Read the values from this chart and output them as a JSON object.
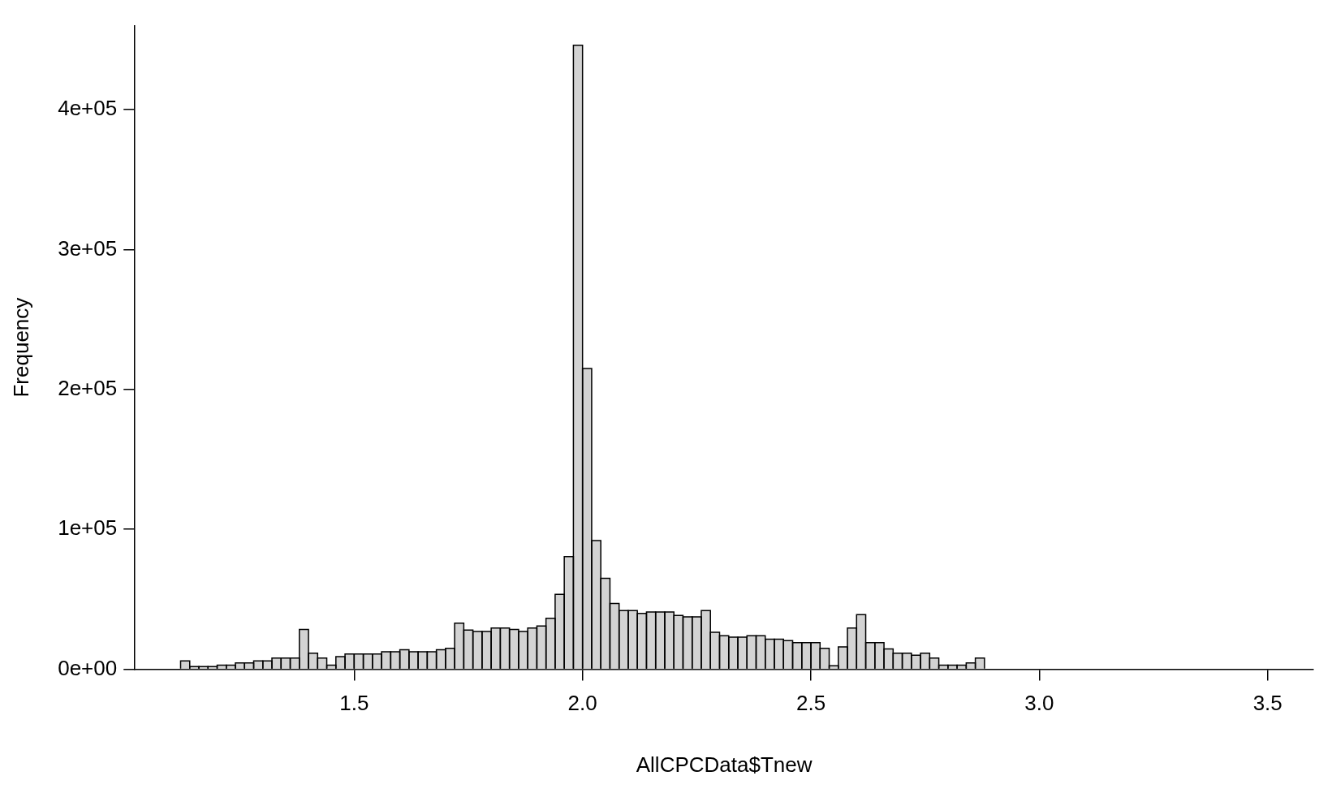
{
  "chart_data": {
    "type": "histogram",
    "xlabel": "AllCPCData$Tnew",
    "ylabel": "Frequency",
    "color": "#d3d3d3",
    "bins": [
      1.12,
      1.14,
      1.16,
      1.18,
      1.2,
      1.22,
      1.24,
      1.26,
      1.28,
      1.3,
      1.32,
      1.34,
      1.36,
      1.38,
      1.4,
      1.42,
      1.44,
      1.46,
      1.48,
      1.5,
      1.52,
      1.54,
      1.56,
      1.58,
      1.6,
      1.62,
      1.64,
      1.66,
      1.68,
      1.7,
      1.72,
      1.74,
      1.76,
      1.78,
      1.8,
      1.82,
      1.84,
      1.86,
      1.88,
      1.9,
      1.92,
      1.94,
      1.96,
      1.98,
      2.0,
      2.02,
      2.04,
      2.06,
      2.08,
      2.1,
      2.12,
      2.14,
      2.16,
      2.18,
      2.2,
      2.22,
      2.24,
      2.26,
      2.28,
      2.3,
      2.32,
      2.34,
      2.36,
      2.38,
      2.4,
      2.42,
      2.44,
      2.46,
      2.48,
      2.5,
      2.52,
      2.54,
      2.56,
      2.58,
      2.6,
      2.62,
      2.64,
      2.66,
      2.68,
      2.7,
      2.72,
      2.74,
      2.76,
      2.78,
      2.8,
      2.82,
      2.84,
      2.86,
      2.88
    ],
    "values": [
      6000,
      2000,
      2000,
      2000,
      3000,
      3000,
      4500,
      4500,
      6000,
      6000,
      8000,
      8000,
      8000,
      28500,
      11500,
      8000,
      3000,
      9000,
      11000,
      11000,
      11000,
      11000,
      12500,
      12500,
      14000,
      12500,
      12500,
      12500,
      14000,
      15000,
      33000,
      28000,
      27000,
      27000,
      29500,
      29500,
      28500,
      27000,
      29500,
      31000,
      36500,
      53500,
      80500,
      446000,
      215000,
      92000,
      65000,
      47000,
      42000,
      42000,
      40000,
      41000,
      41000,
      41000,
      38500,
      37500,
      37500,
      42000,
      26500,
      24000,
      23000,
      23000,
      24000,
      24000,
      21500,
      21500,
      20500,
      19000,
      19000,
      19000,
      15000,
      2500,
      16000,
      29500,
      39000,
      19000,
      19000,
      14500,
      11500,
      11500,
      10000,
      11500,
      8000,
      3000,
      3000,
      3000,
      4500,
      8000
    ],
    "xlim": [
      1.02,
      3.6
    ],
    "xticks": [
      1.5,
      {
        "value": 2,
        "label": "2.0"
      },
      2.5,
      {
        "value": 3,
        "label": "3.0"
      },
      3.5
    ],
    "ylim": [
      0,
      460000
    ],
    "yticks": [
      {
        "value": 0,
        "label": "0e+00"
      },
      {
        "value": 100000,
        "label": "1e+05"
      },
      {
        "value": 200000,
        "label": "2e+05"
      },
      {
        "value": 300000,
        "label": "3e+05"
      },
      {
        "value": 400000,
        "label": "4e+05"
      }
    ],
    "grid": false
  }
}
